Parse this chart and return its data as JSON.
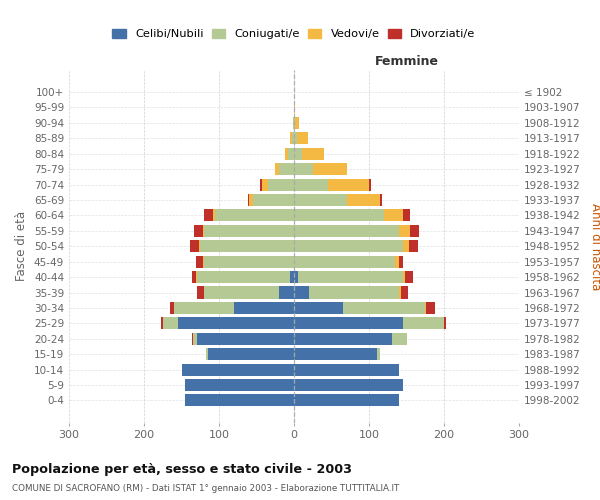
{
  "age_groups": [
    "0-4",
    "5-9",
    "10-14",
    "15-19",
    "20-24",
    "25-29",
    "30-34",
    "35-39",
    "40-44",
    "45-49",
    "50-54",
    "55-59",
    "60-64",
    "65-69",
    "70-74",
    "75-79",
    "80-84",
    "85-89",
    "90-94",
    "95-99",
    "100+"
  ],
  "birth_years": [
    "1998-2002",
    "1993-1997",
    "1988-1992",
    "1983-1987",
    "1978-1982",
    "1973-1977",
    "1968-1972",
    "1963-1967",
    "1958-1962",
    "1953-1957",
    "1948-1952",
    "1943-1947",
    "1938-1942",
    "1933-1937",
    "1928-1932",
    "1923-1927",
    "1918-1922",
    "1913-1917",
    "1908-1912",
    "1903-1907",
    "≤ 1902"
  ],
  "males": {
    "celibe": [
      145,
      145,
      150,
      115,
      130,
      155,
      80,
      20,
      5,
      0,
      0,
      0,
      0,
      0,
      0,
      0,
      0,
      0,
      0,
      0,
      0
    ],
    "coniugato": [
      0,
      0,
      0,
      2,
      5,
      20,
      80,
      100,
      125,
      120,
      125,
      120,
      105,
      55,
      35,
      20,
      8,
      3,
      1,
      0,
      0
    ],
    "vedovo": [
      0,
      0,
      0,
      0,
      0,
      0,
      0,
      0,
      1,
      1,
      2,
      2,
      3,
      5,
      8,
      5,
      4,
      2,
      1,
      0,
      0
    ],
    "divorziato": [
      0,
      0,
      0,
      0,
      1,
      2,
      5,
      10,
      5,
      10,
      12,
      12,
      12,
      2,
      2,
      0,
      0,
      0,
      0,
      0,
      0
    ]
  },
  "females": {
    "nubile": [
      140,
      145,
      140,
      110,
      130,
      145,
      65,
      20,
      5,
      0,
      0,
      0,
      0,
      0,
      0,
      0,
      0,
      0,
      0,
      0,
      0
    ],
    "coniugata": [
      0,
      0,
      0,
      5,
      20,
      55,
      110,
      120,
      140,
      135,
      145,
      140,
      120,
      70,
      45,
      25,
      10,
      4,
      1,
      0,
      0
    ],
    "vedova": [
      0,
      0,
      0,
      0,
      0,
      0,
      1,
      2,
      3,
      5,
      8,
      15,
      25,
      45,
      55,
      45,
      30,
      15,
      5,
      1,
      0
    ],
    "divorziata": [
      0,
      0,
      0,
      0,
      1,
      2,
      12,
      10,
      10,
      5,
      12,
      12,
      10,
      2,
      2,
      1,
      0,
      0,
      0,
      0,
      0
    ]
  },
  "colors": {
    "celibe": "#4472a8",
    "coniugato": "#b5c994",
    "vedovo": "#f4b942",
    "divorziato": "#c0302a"
  },
  "legend_labels": [
    "Celibi/Nubili",
    "Coniugati/e",
    "Vedovi/e",
    "Divorziati/e"
  ],
  "title": "Popolazione per età, sesso e stato civile - 2003",
  "subtitle": "COMUNE DI SACROFANO (RM) - Dati ISTAT 1° gennaio 2003 - Elaborazione TUTTITALIA.IT",
  "ylabel_left": "Fasce di età",
  "ylabel_right": "Anni di nascita",
  "xlabel_femmine": "Femmine",
  "xlim": 300,
  "bg_color": "#ffffff",
  "grid_color": "#cccccc",
  "axis_label_color": "#666666"
}
